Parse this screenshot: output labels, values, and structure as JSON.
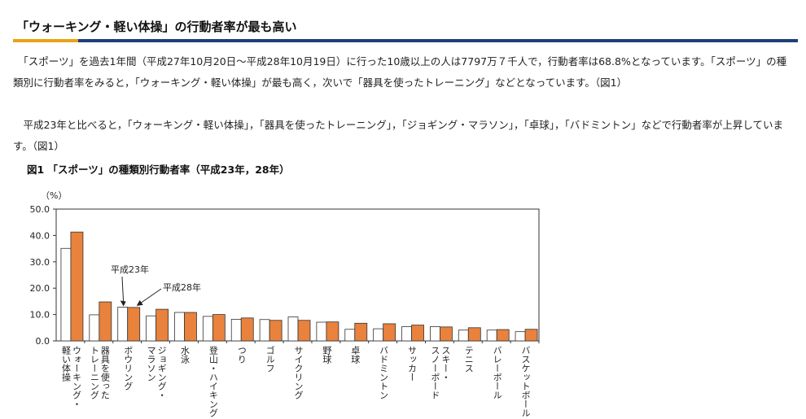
{
  "heading": {
    "title": "「ウォーキング・軽い体操」の行動者率が最も高い",
    "accent_color": "#e8a317",
    "rule_color": "#1f3e7a"
  },
  "paragraphs": [
    "　「スポーツ」を過去1年間（平成27年10月20日～平成28年10月19日）に行った10歳以上の人は7797万７千人で，行動者率は68.8%となっています。「スポーツ」の種類別に行動者率をみると，「ウォーキング・軽い体操」が最も高く，次いで「器具を使ったトレーニング」などとなっています。（図1）",
    "　平成23年と比べると，「ウォーキング・軽い体操」，「器具を使ったトレーニング」，「ジョギング・マラソン」，「卓球」，「バドミントン」などで行動者率が上昇しています。（図1）"
  ],
  "figure": {
    "title": "図1 「スポーツ」の種類別行動者率（平成23年，28年）"
  },
  "chart_data": {
    "type": "bar",
    "title": "図1 「スポーツ」の種類別行動者率（平成23年，28年）",
    "ylabel": "（%）",
    "ylim": [
      0,
      50
    ],
    "ytick_labels": [
      "0.0",
      "10.0",
      "20.0",
      "30.0",
      "40.0",
      "50.0"
    ],
    "ytick_values": [
      0,
      10,
      20,
      30,
      40,
      50
    ],
    "grid": false,
    "categories": [
      "ウォーキング・軽い体操",
      "器具を使ったトレーニング",
      "ボウリング",
      "ジョギング・マラソン",
      "水泳",
      "登山・ハイキング",
      "つり",
      "ゴルフ",
      "サイクリング",
      "野球",
      "卓球",
      "バドミントン",
      "サッカー",
      "スキー・スノーボード",
      "テニス",
      "バレーボール",
      "バスケットボール"
    ],
    "category_label_lines": [
      [
        "ウォーキング・",
        "軽い体操"
      ],
      [
        "器具を使った",
        "トレーニング"
      ],
      [
        "ボウリング"
      ],
      [
        "ジョギング・",
        "マラソン"
      ],
      [
        "水泳"
      ],
      [
        "登山・ハイキング"
      ],
      [
        "つり"
      ],
      [
        "ゴルフ"
      ],
      [
        "サイクリング"
      ],
      [
        "野球"
      ],
      [
        "卓球"
      ],
      [
        "バドミントン"
      ],
      [
        "サッカー"
      ],
      [
        "スキー・",
        "スノーボード"
      ],
      [
        "テニス"
      ],
      [
        "バレーボール"
      ],
      [
        "バスケットボール"
      ]
    ],
    "series": [
      {
        "name": "平成23年",
        "color": "#ffffff",
        "stroke": "#333333",
        "values": [
          35.1,
          9.9,
          12.8,
          9.5,
          10.8,
          9.3,
          8.2,
          8.1,
          9.1,
          7.1,
          4.4,
          4.6,
          5.4,
          5.4,
          4.1,
          4.1,
          3.5
        ]
      },
      {
        "name": "平成28年",
        "color": "#e8823c",
        "stroke": "#333333",
        "values": [
          41.3,
          14.8,
          12.7,
          12.0,
          10.8,
          10.0,
          8.7,
          7.8,
          7.8,
          7.2,
          6.7,
          6.5,
          6.0,
          5.3,
          5.0,
          4.3,
          4.4
        ]
      }
    ],
    "annotations": [
      "平成23年",
      "平成28年"
    ]
  }
}
